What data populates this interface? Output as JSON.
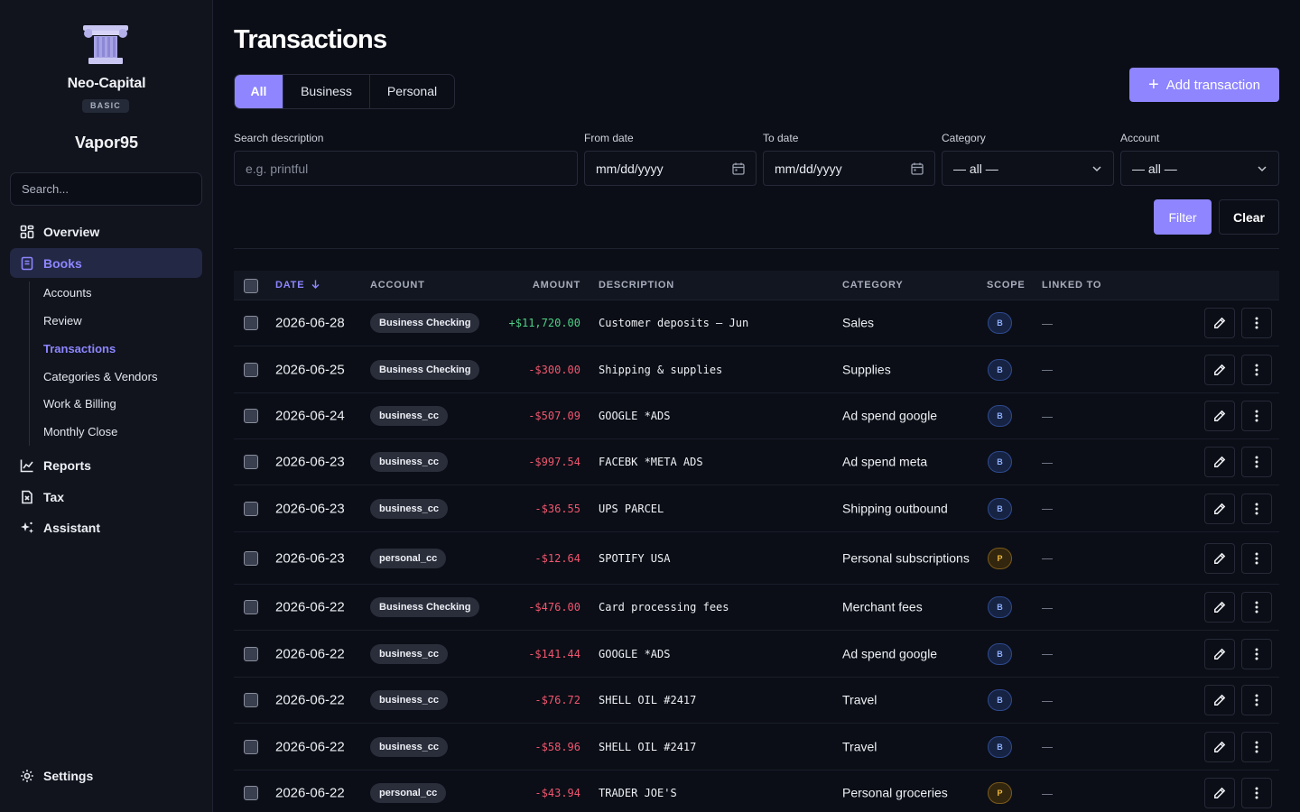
{
  "sidebar": {
    "brand_name": "Neo-Capital",
    "plan": "BASIC",
    "username": "Vapor95",
    "search_placeholder": "Search...",
    "nav": {
      "overview": "Overview",
      "books": "Books",
      "reports": "Reports",
      "tax": "Tax",
      "assistant": "Assistant",
      "settings": "Settings"
    },
    "books_sub": {
      "accounts": "Accounts",
      "review": "Review",
      "transactions": "Transactions",
      "categories": "Categories & Vendors",
      "work": "Work & Billing",
      "monthly_close": "Monthly Close"
    }
  },
  "header": {
    "title": "Transactions",
    "tabs": {
      "all": "All",
      "business": "Business",
      "personal": "Personal"
    },
    "add_button": "Add transaction"
  },
  "filters": {
    "search_label": "Search description",
    "search_placeholder": "e.g. printful",
    "from_label": "From date",
    "from_value": "mm/dd/yyyy",
    "to_label": "To date",
    "to_value": "mm/dd/yyyy",
    "category_label": "Category",
    "category_value": "— all —",
    "account_label": "Account",
    "account_value": "— all —",
    "filter_button": "Filter",
    "clear_button": "Clear"
  },
  "table": {
    "columns": {
      "date": "DATE",
      "account": "ACCOUNT",
      "amount": "AMOUNT",
      "description": "DESCRIPTION",
      "category": "CATEGORY",
      "scope": "SCOPE",
      "linked": "LINKED TO"
    },
    "rows": [
      {
        "date": "2026-06-28",
        "account": "Business Checking",
        "amount": "+$11,720.00",
        "sign": "pos",
        "description": "Customer deposits — Jun",
        "category": "Sales",
        "scope": "B"
      },
      {
        "date": "2026-06-25",
        "account": "Business Checking",
        "amount": "-$300.00",
        "sign": "neg",
        "description": "Shipping & supplies",
        "category": "Supplies",
        "scope": "B"
      },
      {
        "date": "2026-06-24",
        "account": "business_cc",
        "amount": "-$507.09",
        "sign": "neg",
        "description": "GOOGLE *ADS",
        "category": "Ad spend google",
        "scope": "B"
      },
      {
        "date": "2026-06-23",
        "account": "business_cc",
        "amount": "-$997.54",
        "sign": "neg",
        "description": "FACEBK *META ADS",
        "category": "Ad spend meta",
        "scope": "B"
      },
      {
        "date": "2026-06-23",
        "account": "business_cc",
        "amount": "-$36.55",
        "sign": "neg",
        "description": "UPS PARCEL",
        "category": "Shipping outbound",
        "scope": "B"
      },
      {
        "date": "2026-06-23",
        "account": "personal_cc",
        "amount": "-$12.64",
        "sign": "neg",
        "description": "SPOTIFY USA",
        "category": "Personal subscriptions",
        "scope": "P"
      },
      {
        "date": "2026-06-22",
        "account": "Business Checking",
        "amount": "-$476.00",
        "sign": "neg",
        "description": "Card processing fees",
        "category": "Merchant fees",
        "scope": "B"
      },
      {
        "date": "2026-06-22",
        "account": "business_cc",
        "amount": "-$141.44",
        "sign": "neg",
        "description": "GOOGLE *ADS",
        "category": "Ad spend google",
        "scope": "B"
      },
      {
        "date": "2026-06-22",
        "account": "business_cc",
        "amount": "-$76.72",
        "sign": "neg",
        "description": "SHELL OIL #2417",
        "category": "Travel",
        "scope": "B"
      },
      {
        "date": "2026-06-22",
        "account": "business_cc",
        "amount": "-$58.96",
        "sign": "neg",
        "description": "SHELL OIL #2417",
        "category": "Travel",
        "scope": "B"
      },
      {
        "date": "2026-06-22",
        "account": "personal_cc",
        "amount": "-$43.94",
        "sign": "neg",
        "description": "TRADER JOE'S",
        "category": "Personal groceries",
        "scope": "P"
      }
    ]
  }
}
